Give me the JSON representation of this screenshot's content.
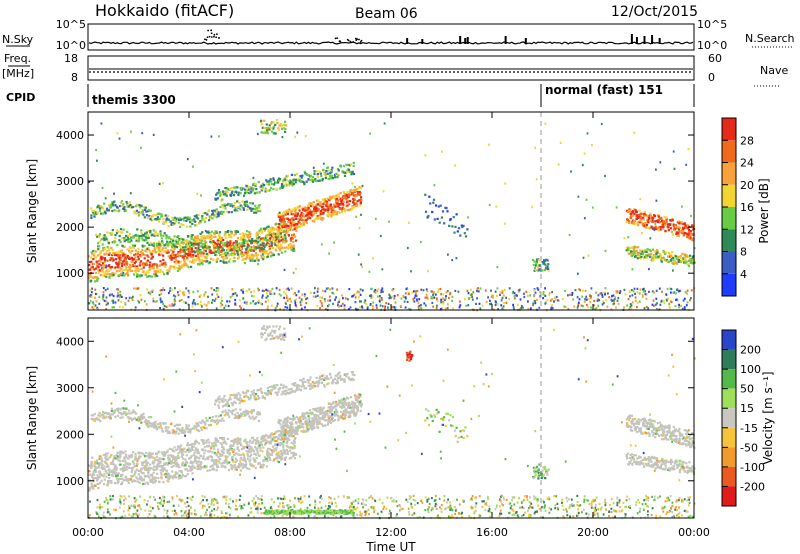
{
  "header": {
    "radar": "Hokkaido (fitACF)",
    "beam": "Beam 06",
    "date": "12/Oct/2015"
  },
  "panels": {
    "nsky": {
      "label": "N.Sky",
      "ticks": [
        "10^5",
        "10^0"
      ]
    },
    "nsearch": {
      "label": "N.Search",
      "ticks": [
        "10^5",
        "10^0"
      ]
    },
    "freq": {
      "label_top": "Freq.",
      "label_bottom": "[MHz]",
      "ticks": [
        "18",
        "8"
      ]
    },
    "nave": {
      "label": "Nave",
      "ticks": [
        "60",
        "0"
      ]
    },
    "cpid": {
      "label": "CPID",
      "segments": [
        "themis 3300",
        "normal (fast) 151"
      ]
    }
  },
  "chart_data": [
    {
      "type": "heatmap",
      "name": "power",
      "ylabel": "Slant Range [km]",
      "yticks": [
        "1000",
        "2000",
        "3000",
        "4000"
      ],
      "ylim": [
        200,
        4500
      ],
      "colorbar": {
        "label": "Power [dB]",
        "ticks": [
          "4",
          "8",
          "12",
          "16",
          "20",
          "24",
          "28"
        ],
        "colors": [
          "#1e3cff",
          "#3a5ec4",
          "#2e8b57",
          "#66cc44",
          "#f2d531",
          "#f7a23a",
          "#f06a1c",
          "#e52a1a"
        ]
      }
    },
    {
      "type": "heatmap",
      "name": "velocity",
      "ylabel": "Slant Range [km]",
      "yticks": [
        "1000",
        "2000",
        "3000",
        "4000"
      ],
      "ylim": [
        200,
        4500
      ],
      "xlabel": "Time UT",
      "xticks": [
        "00:00",
        "04:00",
        "08:00",
        "12:00",
        "16:00",
        "20:00",
        "00:00"
      ],
      "colorbar": {
        "label": "Velocity [m s⁻¹]",
        "ticks": [
          "200",
          "100",
          "50",
          "15",
          "-15",
          "-50",
          "-100",
          "-200"
        ],
        "colors": [
          "#2a46c8",
          "#2e7d5a",
          "#55b94a",
          "#9ee05c",
          "#c8c8c0",
          "#f5c43a",
          "#f29a2e",
          "#ea5a20",
          "#e11a1a"
        ]
      }
    }
  ],
  "colors": {
    "grey_scatter": "#c4c4bc",
    "mode_line": "#999999"
  }
}
